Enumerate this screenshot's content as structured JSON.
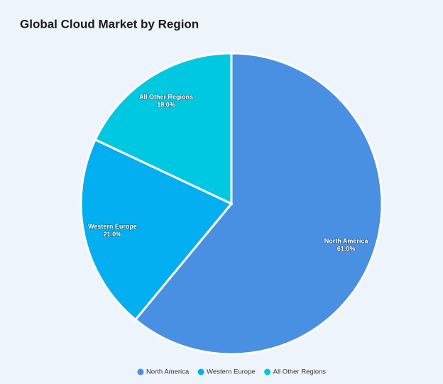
{
  "chart_data": {
    "type": "pie",
    "title": "Global Cloud Market by Region",
    "categories": [
      "North America",
      "Western Europe",
      "All Other Regions"
    ],
    "values": [
      61,
      21,
      18
    ],
    "value_labels": [
      "61.0%",
      "21.0%",
      "18.0%"
    ],
    "colors": [
      "#4a90e2",
      "#03aff0",
      "#00c8e0"
    ],
    "legend": "bottom"
  }
}
